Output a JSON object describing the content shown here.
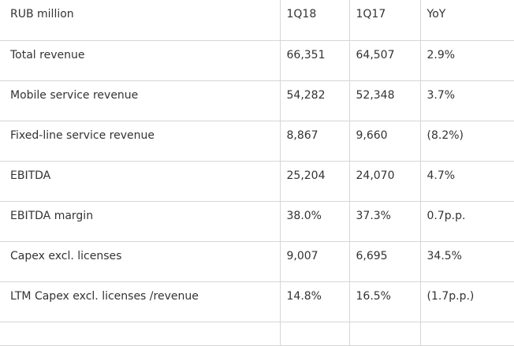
{
  "table": {
    "headers": [
      "RUB million",
      "1Q18",
      "1Q17",
      "YoY"
    ],
    "rows": [
      [
        "Total revenue",
        "66,351",
        "64,507",
        "2.9%"
      ],
      [
        "Mobile service revenue",
        "54,282",
        "52,348",
        "3.7%"
      ],
      [
        "Fixed-line service revenue",
        "8,867",
        "9,660",
        "(8.2%)"
      ],
      [
        "EBITDA",
        "25,204",
        "24,070",
        "4.7%"
      ],
      [
        "EBITDA margin",
        "38.0%",
        "37.3%",
        "0.7p.p."
      ],
      [
        "Capex excl. licenses",
        "9,007",
        "6,695",
        "34.5%"
      ],
      [
        "LTM Capex excl. licenses /revenue",
        "14.8%",
        "16.5%",
        "(1.7p.p.)"
      ]
    ]
  }
}
